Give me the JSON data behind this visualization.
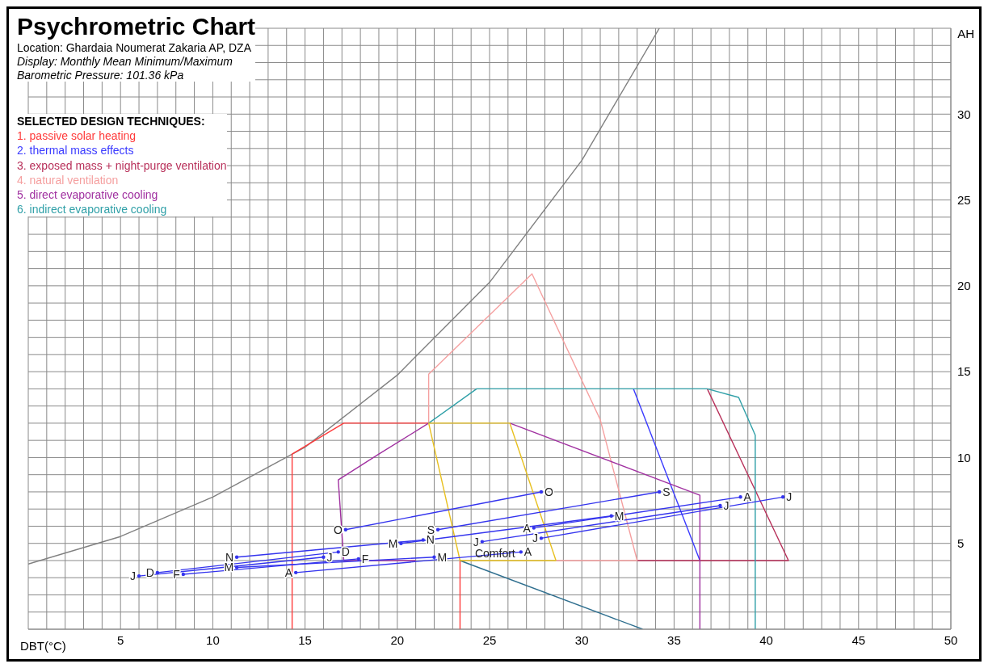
{
  "chart_data": {
    "type": "line",
    "title": "Psychrometric Chart",
    "subtitle": "Location: Ghardaia Noumerat Zakaria AP, DZA",
    "annotations": [
      "Display: Monthly Mean Minimum/Maximum",
      "Barometric Pressure: 101.36 kPa",
      {
        "text": "Comfort",
        "x": 25.3,
        "y": 4.4
      }
    ],
    "xlabel": "DBT(°C)",
    "ylabel": "AH",
    "legend_title": "SELECTED DESIGN TECHNIQUES:",
    "legend": "top left",
    "grid": true,
    "line_style": "solid",
    "xlim": [
      0,
      50
    ],
    "ylim": [
      0,
      35
    ],
    "xticks": [
      {
        "value": 0,
        "label": null
      },
      {
        "value": 1,
        "label": null
      },
      {
        "value": 2,
        "label": null
      },
      {
        "value": 3,
        "label": null
      },
      {
        "value": 4,
        "label": null
      },
      5,
      {
        "value": 6,
        "label": null
      },
      {
        "value": 7,
        "label": null
      },
      {
        "value": 8,
        "label": null
      },
      {
        "value": 9,
        "label": null
      },
      10,
      {
        "value": 11,
        "label": null
      },
      {
        "value": 12,
        "label": null
      },
      {
        "value": 13,
        "label": null
      },
      {
        "value": 14,
        "label": null
      },
      15,
      {
        "value": 16,
        "label": null
      },
      {
        "value": 17,
        "label": null
      },
      {
        "value": 18,
        "label": null
      },
      {
        "value": 19,
        "label": null
      },
      20,
      {
        "value": 21,
        "label": null
      },
      {
        "value": 22,
        "label": null
      },
      {
        "value": 23,
        "label": null
      },
      {
        "value": 24,
        "label": null
      },
      25,
      {
        "value": 26,
        "label": null
      },
      {
        "value": 27,
        "label": null
      },
      {
        "value": 28,
        "label": null
      },
      {
        "value": 29,
        "label": null
      },
      30,
      {
        "value": 31,
        "label": null
      },
      {
        "value": 32,
        "label": null
      },
      {
        "value": 33,
        "label": null
      },
      {
        "value": 34,
        "label": null
      },
      35,
      {
        "value": 36,
        "label": null
      },
      {
        "value": 37,
        "label": null
      },
      {
        "value": 38,
        "label": null
      },
      {
        "value": 39,
        "label": null
      },
      40,
      {
        "value": 41,
        "label": null
      },
      {
        "value": 42,
        "label": null
      },
      {
        "value": 43,
        "label": null
      },
      {
        "value": 44,
        "label": null
      },
      45,
      {
        "value": 46,
        "label": null
      },
      {
        "value": 47,
        "label": null
      },
      {
        "value": 48,
        "label": null
      },
      {
        "value": 49,
        "label": null
      },
      50
    ],
    "yticks": [
      {
        "value": 0,
        "label": null
      },
      {
        "value": 1,
        "label": null
      },
      {
        "value": 2,
        "label": null
      },
      {
        "value": 3,
        "label": null
      },
      {
        "value": 4,
        "label": null
      },
      5,
      {
        "value": 6,
        "label": null
      },
      {
        "value": 7,
        "label": null
      },
      {
        "value": 8,
        "label": null
      },
      {
        "value": 9,
        "label": null
      },
      10,
      {
        "value": 11,
        "label": null
      },
      {
        "value": 12,
        "label": null
      },
      {
        "value": 13,
        "label": null
      },
      {
        "value": 14,
        "label": null
      },
      15,
      {
        "value": 16,
        "label": null
      },
      {
        "value": 17,
        "label": null
      },
      {
        "value": 18,
        "label": null
      },
      {
        "value": 19,
        "label": null
      },
      20,
      {
        "value": 21,
        "label": null
      },
      {
        "value": 22,
        "label": null
      },
      {
        "value": 23,
        "label": null
      },
      {
        "value": 24,
        "label": null
      },
      25,
      {
        "value": 26,
        "label": null
      },
      {
        "value": 27,
        "label": null
      },
      {
        "value": 28,
        "label": null
      },
      {
        "value": 29,
        "label": null
      },
      30,
      {
        "value": 31,
        "label": null
      },
      {
        "value": 32,
        "label": null
      },
      {
        "value": 33,
        "label": null
      },
      {
        "value": 34,
        "label": null
      },
      {
        "value": 35,
        "label": null
      }
    ],
    "series": [
      {
        "type": "line",
        "color": "#808080",
        "marker": "none",
        "x": [
          0,
          5,
          10,
          15,
          20,
          25,
          30,
          34.2
        ],
        "values": [
          3.8,
          5.4,
          7.7,
          10.6,
          14.8,
          20.2,
          27.3,
          35
        ]
      },
      {
        "type": "line",
        "name": "1. passive solar heating",
        "color": "#ff3b3b",
        "marker": "none",
        "x": [
          14.3,
          14.3,
          17.1,
          21.7
        ],
        "values": [
          0,
          10.2,
          12.0,
          12.0
        ]
      },
      {
        "type": "line",
        "color": "#ff3b3b",
        "marker": "none",
        "x": [
          23.4,
          23.4
        ],
        "values": [
          4.0,
          0
        ]
      },
      {
        "type": "line",
        "name": "2. thermal mass effects",
        "color": "#3a3aff",
        "marker": "none",
        "x": [
          32.8,
          36.4
        ],
        "values": [
          14.0,
          4.0
        ]
      },
      {
        "type": "line",
        "name": "3. exposed mass + night-purge ventilation",
        "color": "#b8305a",
        "marker": "none",
        "x": [
          36.8,
          41.2,
          33.0
        ],
        "values": [
          14.0,
          4.0,
          4.0
        ]
      },
      {
        "type": "line",
        "name": "4. natural ventilation",
        "color": "#f5a0a0",
        "marker": "none",
        "x": [
          21.7,
          21.7,
          27.3,
          31.0,
          33.0,
          28.6
        ],
        "values": [
          12.0,
          14.85,
          20.7,
          12.2,
          4.0,
          4.0
        ]
      },
      {
        "type": "line",
        "name": "5. direct evaporative cooling",
        "color": "#a030a0",
        "marker": "none",
        "x": [
          21.7,
          19.0,
          16.8,
          17.1,
          21.0
        ],
        "values": [
          12.0,
          10.2,
          8.7,
          4.0,
          4.0
        ]
      },
      {
        "type": "line",
        "color": "#a030a0",
        "marker": "none",
        "x": [
          26.1,
          36.4,
          36.4
        ],
        "values": [
          12.0,
          7.8,
          0
        ]
      },
      {
        "type": "line",
        "name": "6. indirect evaporative cooling",
        "color": "#30a0a8",
        "marker": "none",
        "x": [
          21.7,
          24.3,
          36.8,
          38.5,
          39.4,
          39.4
        ],
        "values": [
          12.0,
          14.0,
          14.0,
          13.5,
          11.3,
          0
        ]
      },
      {
        "type": "line",
        "color": "#2f6f8f",
        "marker": "none",
        "x": [
          23.4,
          33.3
        ],
        "values": [
          4.0,
          0
        ]
      },
      {
        "type": "line",
        "color": "#e8c020",
        "marker": "none",
        "x": [
          21.7,
          26.1,
          28.6
        ],
        "values": [
          12.0,
          12.0,
          4.0
        ]
      },
      {
        "type": "line",
        "color": "#e8c020",
        "marker": "none",
        "x": [
          21.7,
          23.4,
          28.6
        ],
        "values": [
          12.0,
          4.0,
          4.0
        ]
      },
      {
        "type": "line",
        "color": "#3434ee",
        "marker": "circle",
        "x": [
          6.0,
          16.0
        ],
        "values": [
          3.1,
          4.2
        ],
        "value_labels": [
          "J",
          "J"
        ]
      },
      {
        "type": "line",
        "color": "#3434ee",
        "marker": "circle",
        "x": [
          8.4,
          17.9
        ],
        "values": [
          3.2,
          4.1
        ],
        "value_labels": [
          "F",
          "F"
        ]
      },
      {
        "type": "line",
        "color": "#3434ee",
        "marker": "circle",
        "x": [
          11.3,
          22.0
        ],
        "values": [
          3.6,
          4.2
        ],
        "value_labels": [
          "M",
          "M"
        ]
      },
      {
        "type": "line",
        "color": "#3434ee",
        "marker": "circle",
        "x": [
          14.5,
          26.7
        ],
        "values": [
          3.3,
          4.5
        ],
        "value_labels": [
          "A",
          "A"
        ]
      },
      {
        "type": "line",
        "color": "#3434ee",
        "marker": "circle",
        "x": [
          20.2,
          31.6
        ],
        "values": [
          5.0,
          6.6
        ],
        "value_labels": [
          "M",
          "M"
        ]
      },
      {
        "type": "line",
        "color": "#3434ee",
        "marker": "circle",
        "x": [
          24.6,
          37.5
        ],
        "values": [
          5.1,
          7.2
        ],
        "value_labels": [
          "J",
          "J"
        ]
      },
      {
        "type": "line",
        "color": "#3434ee",
        "marker": "circle",
        "x": [
          27.8,
          40.9
        ],
        "values": [
          5.3,
          7.7
        ],
        "value_labels": [
          "J",
          "J"
        ]
      },
      {
        "type": "line",
        "color": "#3434ee",
        "marker": "circle",
        "x": [
          27.4,
          38.6
        ],
        "values": [
          5.9,
          7.7
        ],
        "value_labels": [
          "A",
          "A"
        ]
      },
      {
        "type": "line",
        "color": "#3434ee",
        "marker": "circle",
        "x": [
          22.2,
          34.2
        ],
        "values": [
          5.8,
          8.0
        ],
        "value_labels": [
          "S",
          "S"
        ]
      },
      {
        "type": "line",
        "color": "#3434ee",
        "marker": "circle",
        "x": [
          17.2,
          27.8
        ],
        "values": [
          5.8,
          8.0
        ],
        "value_labels": [
          "O",
          "O"
        ]
      },
      {
        "type": "line",
        "color": "#3434ee",
        "marker": "circle",
        "x": [
          11.3,
          21.4
        ],
        "values": [
          4.2,
          5.2
        ],
        "value_labels": [
          "N",
          "N"
        ]
      },
      {
        "type": "line",
        "color": "#3434ee",
        "marker": "circle",
        "x": [
          7.0,
          16.8
        ],
        "values": [
          3.3,
          4.5
        ],
        "value_labels": [
          "D",
          "D"
        ]
      }
    ]
  }
}
